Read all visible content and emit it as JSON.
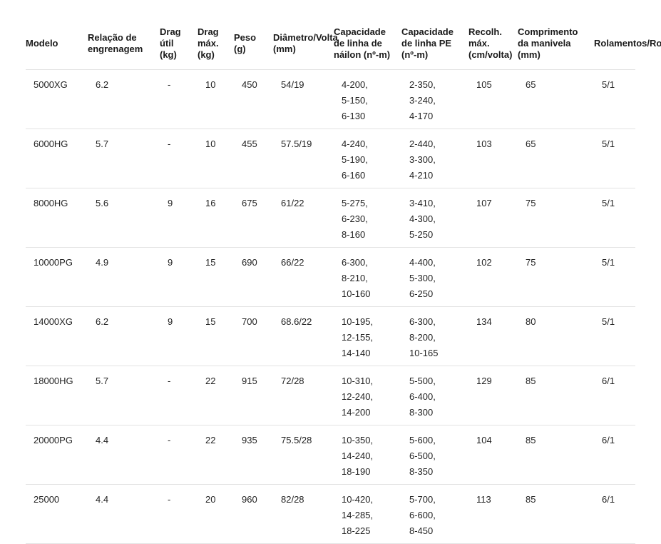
{
  "colors": {
    "background": "#ffffff",
    "header_text": "#1a1a1a",
    "body_text": "#232323",
    "divider": "#e3e3e3"
  },
  "chart_data": {
    "type": "table",
    "title": "",
    "columns": [
      "Modelo",
      "Relação de engrenagem",
      "Drag útil (kg)",
      "Drag máx. (kg)",
      "Peso (g)",
      "Diâmetro/Volta (mm)",
      "Capacidade de linha de náilon (nº-m)",
      "Capacidade de linha PE (nº-m)",
      "Recolh. máx. (cm/volta)",
      "Comprimento da manivela (mm)",
      "Rolamentos/Rolers"
    ],
    "rows": [
      [
        "5000XG",
        "6.2",
        "-",
        "10",
        "450",
        "54/19",
        [
          "4-200,",
          "5-150,",
          "6-130"
        ],
        [
          "2-350,",
          "3-240,",
          "4-170"
        ],
        "105",
        "65",
        "5/1"
      ],
      [
        "6000HG",
        "5.7",
        "-",
        "10",
        "455",
        "57.5/19",
        [
          "4-240,",
          "5-190,",
          "6-160"
        ],
        [
          "2-440,",
          "3-300,",
          "4-210"
        ],
        "103",
        "65",
        "5/1"
      ],
      [
        "8000HG",
        "5.6",
        "9",
        "16",
        "675",
        "61/22",
        [
          "5-275,",
          "6-230,",
          "8-160"
        ],
        [
          "3-410,",
          "4-300,",
          "5-250"
        ],
        "107",
        "75",
        "5/1"
      ],
      [
        "10000PG",
        "4.9",
        "9",
        "15",
        "690",
        "66/22",
        [
          "6-300,",
          "8-210,",
          "10-160"
        ],
        [
          "4-400,",
          "5-300,",
          "6-250"
        ],
        "102",
        "75",
        "5/1"
      ],
      [
        "14000XG",
        "6.2",
        "9",
        "15",
        "700",
        "68.6/22",
        [
          "10-195,",
          "12-155,",
          "14-140"
        ],
        [
          "6-300,",
          "8-200,",
          "10-165"
        ],
        "134",
        "80",
        "5/1"
      ],
      [
        "18000HG",
        "5.7",
        "-",
        "22",
        "915",
        "72/28",
        [
          "10-310,",
          "12-240,",
          "14-200"
        ],
        [
          "5-500,",
          "6-400,",
          "8-300"
        ],
        "129",
        "85",
        "6/1"
      ],
      [
        "20000PG",
        "4.4",
        "-",
        "22",
        "935",
        "75.5/28",
        [
          "10-350,",
          "14-240,",
          "18-190"
        ],
        [
          "5-600,",
          "6-500,",
          "8-350"
        ],
        "104",
        "85",
        "6/1"
      ],
      [
        "25000",
        "4.4",
        "-",
        "20",
        "960",
        "82/28",
        [
          "10-420,",
          "14-285,",
          "18-225"
        ],
        [
          "5-700,",
          "6-600,",
          "8-450"
        ],
        "113",
        "85",
        "6/1"
      ]
    ]
  }
}
